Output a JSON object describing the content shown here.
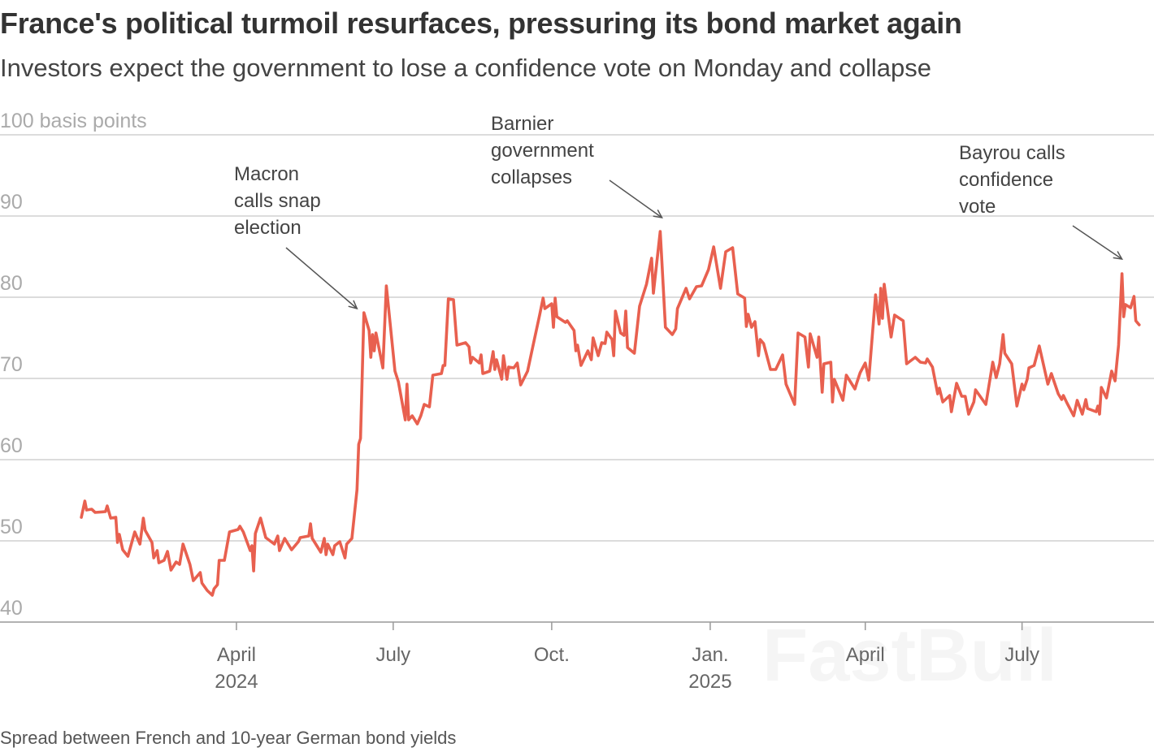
{
  "title": "France's political turmoil resurfaces, pressuring its bond market again",
  "subtitle": "Investors expect the government to lose a confidence vote on Monday and collapse",
  "footer": "Spread between French and 10-year German bond yields",
  "watermark": "FastBull",
  "chart_data": {
    "type": "line",
    "title": "France's political turmoil resurfaces, pressuring its bond market again",
    "ylabel": "",
    "y_unit_label": "100 basis points",
    "ylim": [
      40,
      100
    ],
    "yticks": [
      {
        "value": 100,
        "label": "100 basis points"
      },
      {
        "value": 90,
        "label": "90"
      },
      {
        "value": 80,
        "label": "80"
      },
      {
        "value": 70,
        "label": "70"
      },
      {
        "value": 60,
        "label": "60"
      },
      {
        "value": 50,
        "label": "50"
      },
      {
        "value": 40,
        "label": "40"
      }
    ],
    "xlim": [
      "2024-01-01",
      "2025-09-12"
    ],
    "xticks": [
      {
        "date": "2024-04-01",
        "label": "April",
        "year": "2024"
      },
      {
        "date": "2024-07-01",
        "label": "July",
        "year": ""
      },
      {
        "date": "2024-10-01",
        "label": "Oct.",
        "year": ""
      },
      {
        "date": "2025-01-01",
        "label": "Jan.",
        "year": "2025"
      },
      {
        "date": "2025-04-01",
        "label": "April",
        "year": ""
      },
      {
        "date": "2025-07-01",
        "label": "July",
        "year": ""
      }
    ],
    "grid": true,
    "line_color": "#e8604f",
    "annotations": [
      {
        "date": "2024-06-10",
        "value": 78.6,
        "lines": [
          "Macron",
          "calls snap",
          "election"
        ]
      },
      {
        "date": "2024-12-04",
        "value": 89.8,
        "lines": [
          "Barnier",
          "government",
          "collapses"
        ]
      },
      {
        "date": "2025-08-28",
        "value": 84.7,
        "lines": [
          "Bayrou calls",
          "confidence",
          "vote"
        ]
      }
    ],
    "series": [
      {
        "points": [
          [
            "2024-01-02",
            52.9
          ],
          [
            "2024-01-04",
            54.9
          ],
          [
            "2024-01-05",
            53.8
          ],
          [
            "2024-01-08",
            53.9
          ],
          [
            "2024-01-10",
            53.5
          ],
          [
            "2024-01-16",
            53.6
          ],
          [
            "2024-01-17",
            54.3
          ],
          [
            "2024-01-19",
            52.8
          ],
          [
            "2024-01-22",
            52.9
          ],
          [
            "2024-01-23",
            49.8
          ],
          [
            "2024-01-24",
            50.8
          ],
          [
            "2024-01-26",
            48.9
          ],
          [
            "2024-01-29",
            48.1
          ],
          [
            "2024-02-02",
            51.1
          ],
          [
            "2024-02-05",
            49.6
          ],
          [
            "2024-02-07",
            52.8
          ],
          [
            "2024-02-08",
            51.3
          ],
          [
            "2024-02-12",
            49.8
          ],
          [
            "2024-02-13",
            47.9
          ],
          [
            "2024-02-15",
            48.8
          ],
          [
            "2024-02-16",
            47.3
          ],
          [
            "2024-02-19",
            47.6
          ],
          [
            "2024-02-21",
            48.7
          ],
          [
            "2024-02-23",
            46.4
          ],
          [
            "2024-02-26",
            47.4
          ],
          [
            "2024-02-28",
            47.1
          ],
          [
            "2024-03-01",
            49.6
          ],
          [
            "2024-03-05",
            47.1
          ],
          [
            "2024-03-07",
            45.1
          ],
          [
            "2024-03-11",
            46.1
          ],
          [
            "2024-03-12",
            44.8
          ],
          [
            "2024-03-15",
            43.9
          ],
          [
            "2024-03-18",
            43.3
          ],
          [
            "2024-03-19",
            44.1
          ],
          [
            "2024-03-21",
            44.6
          ],
          [
            "2024-03-22",
            47.6
          ],
          [
            "2024-03-25",
            47.6
          ],
          [
            "2024-03-28",
            51.1
          ],
          [
            "2024-04-02",
            51.4
          ],
          [
            "2024-04-03",
            51.8
          ],
          [
            "2024-04-05",
            51.1
          ],
          [
            "2024-04-09",
            48.8
          ],
          [
            "2024-04-10",
            49.4
          ],
          [
            "2024-04-11",
            46.3
          ],
          [
            "2024-04-12",
            50.9
          ],
          [
            "2024-04-15",
            52.8
          ],
          [
            "2024-04-18",
            50.4
          ],
          [
            "2024-04-23",
            49.6
          ],
          [
            "2024-04-25",
            50.6
          ],
          [
            "2024-04-26",
            48.8
          ],
          [
            "2024-04-29",
            50.3
          ],
          [
            "2024-05-03",
            48.9
          ],
          [
            "2024-05-07",
            49.9
          ],
          [
            "2024-05-08",
            50.4
          ],
          [
            "2024-05-13",
            50.6
          ],
          [
            "2024-05-14",
            52.1
          ],
          [
            "2024-05-15",
            50.3
          ],
          [
            "2024-05-20",
            48.6
          ],
          [
            "2024-05-22",
            50.3
          ],
          [
            "2024-05-23",
            48.3
          ],
          [
            "2024-05-24",
            49.6
          ],
          [
            "2024-05-27",
            48.3
          ],
          [
            "2024-05-28",
            49.4
          ],
          [
            "2024-05-31",
            49.9
          ],
          [
            "2024-06-03",
            47.9
          ],
          [
            "2024-06-04",
            49.6
          ],
          [
            "2024-06-07",
            50.3
          ],
          [
            "2024-06-10",
            56.3
          ],
          [
            "2024-06-11",
            61.9
          ],
          [
            "2024-06-12",
            62.6
          ],
          [
            "2024-06-14",
            78.1
          ],
          [
            "2024-06-17",
            75.9
          ],
          [
            "2024-06-18",
            72.6
          ],
          [
            "2024-06-19",
            75.4
          ],
          [
            "2024-06-20",
            73.4
          ],
          [
            "2024-06-21",
            75.6
          ],
          [
            "2024-06-25",
            71.3
          ],
          [
            "2024-06-27",
            81.4
          ],
          [
            "2024-07-02",
            70.9
          ],
          [
            "2024-07-04",
            69.6
          ],
          [
            "2024-07-08",
            64.9
          ],
          [
            "2024-07-09",
            69.3
          ],
          [
            "2024-07-10",
            64.9
          ],
          [
            "2024-07-12",
            65.4
          ],
          [
            "2024-07-15",
            64.4
          ],
          [
            "2024-07-17",
            65.4
          ],
          [
            "2024-07-19",
            66.8
          ],
          [
            "2024-07-22",
            66.5
          ],
          [
            "2024-07-24",
            70.4
          ],
          [
            "2024-07-29",
            70.6
          ],
          [
            "2024-07-30",
            71.6
          ],
          [
            "2024-07-31",
            71.6
          ],
          [
            "2024-08-02",
            79.8
          ],
          [
            "2024-08-05",
            79.7
          ],
          [
            "2024-08-07",
            74.1
          ],
          [
            "2024-08-12",
            74.4
          ],
          [
            "2024-08-14",
            73.9
          ],
          [
            "2024-08-15",
            71.9
          ],
          [
            "2024-08-16",
            72.6
          ],
          [
            "2024-08-20",
            71.9
          ],
          [
            "2024-08-21",
            72.9
          ],
          [
            "2024-08-22",
            70.6
          ],
          [
            "2024-08-26",
            70.9
          ],
          [
            "2024-08-28",
            73.3
          ],
          [
            "2024-08-29",
            71.1
          ],
          [
            "2024-08-30",
            72.3
          ],
          [
            "2024-09-02",
            69.9
          ],
          [
            "2024-09-03",
            72.8
          ],
          [
            "2024-09-05",
            69.9
          ],
          [
            "2024-09-06",
            71.4
          ],
          [
            "2024-09-09",
            71.3
          ],
          [
            "2024-09-11",
            71.9
          ],
          [
            "2024-09-13",
            69.2
          ],
          [
            "2024-09-17",
            70.9
          ],
          [
            "2024-09-20",
            73.9
          ],
          [
            "2024-09-24",
            77.8
          ],
          [
            "2024-09-26",
            79.9
          ],
          [
            "2024-09-27",
            78.6
          ],
          [
            "2024-10-01",
            79.2
          ],
          [
            "2024-10-02",
            76.3
          ],
          [
            "2024-10-03",
            79.9
          ],
          [
            "2024-10-04",
            77.6
          ],
          [
            "2024-10-09",
            76.9
          ],
          [
            "2024-10-10",
            77.1
          ],
          [
            "2024-10-14",
            75.9
          ],
          [
            "2024-10-15",
            73.4
          ],
          [
            "2024-10-16",
            74.1
          ],
          [
            "2024-10-18",
            71.6
          ],
          [
            "2024-10-22",
            73.4
          ],
          [
            "2024-10-24",
            72.3
          ],
          [
            "2024-10-25",
            75.0
          ],
          [
            "2024-10-28",
            72.8
          ],
          [
            "2024-10-30",
            74.4
          ],
          [
            "2024-11-01",
            74.3
          ],
          [
            "2024-11-02",
            75.7
          ],
          [
            "2024-11-05",
            74.8
          ],
          [
            "2024-11-06",
            72.8
          ],
          [
            "2024-11-07",
            78.3
          ],
          [
            "2024-11-10",
            75.6
          ],
          [
            "2024-11-12",
            75.3
          ],
          [
            "2024-11-13",
            78.3
          ],
          [
            "2024-11-14",
            73.8
          ],
          [
            "2024-11-18",
            73.1
          ],
          [
            "2024-11-21",
            78.9
          ],
          [
            "2024-11-25",
            81.6
          ],
          [
            "2024-11-28",
            84.8
          ],
          [
            "2024-11-29",
            80.5
          ],
          [
            "2024-12-03",
            88.1
          ],
          [
            "2024-12-04",
            84.1
          ],
          [
            "2024-12-06",
            76.3
          ],
          [
            "2024-12-10",
            75.4
          ],
          [
            "2024-12-12",
            76.1
          ],
          [
            "2024-12-13",
            78.6
          ],
          [
            "2024-12-18",
            81.1
          ],
          [
            "2024-12-20",
            79.8
          ],
          [
            "2024-12-24",
            81.3
          ],
          [
            "2024-12-27",
            81.4
          ],
          [
            "2024-12-31",
            83.4
          ],
          [
            "2025-01-03",
            86.2
          ],
          [
            "2025-01-07",
            81.1
          ],
          [
            "2025-01-10",
            85.6
          ],
          [
            "2025-01-14",
            86.1
          ],
          [
            "2025-01-17",
            80.4
          ],
          [
            "2025-01-21",
            79.9
          ],
          [
            "2025-01-22",
            76.4
          ],
          [
            "2025-01-23",
            77.9
          ],
          [
            "2025-01-25",
            76.3
          ],
          [
            "2025-01-27",
            77.0
          ],
          [
            "2025-01-29",
            72.8
          ],
          [
            "2025-01-30",
            74.8
          ],
          [
            "2025-02-01",
            74.3
          ],
          [
            "2025-02-05",
            71.1
          ],
          [
            "2025-02-08",
            71.1
          ],
          [
            "2025-02-12",
            72.9
          ],
          [
            "2025-02-14",
            69.3
          ],
          [
            "2025-02-19",
            66.8
          ],
          [
            "2025-02-21",
            75.6
          ],
          [
            "2025-02-25",
            75.1
          ],
          [
            "2025-02-27",
            71.4
          ],
          [
            "2025-02-28",
            75.5
          ],
          [
            "2025-03-04",
            72.6
          ],
          [
            "2025-03-05",
            75.1
          ],
          [
            "2025-03-07",
            68.3
          ],
          [
            "2025-03-08",
            71.8
          ],
          [
            "2025-03-12",
            72.0
          ],
          [
            "2025-03-13",
            67.1
          ],
          [
            "2025-03-14",
            69.9
          ],
          [
            "2025-03-19",
            67.3
          ],
          [
            "2025-03-21",
            70.4
          ],
          [
            "2025-03-26",
            68.7
          ],
          [
            "2025-03-27",
            69.4
          ],
          [
            "2025-03-29",
            70.7
          ],
          [
            "2025-04-01",
            71.9
          ],
          [
            "2025-04-03",
            69.8
          ],
          [
            "2025-04-07",
            80.3
          ],
          [
            "2025-04-09",
            76.7
          ],
          [
            "2025-04-10",
            81.1
          ],
          [
            "2025-04-11",
            77.4
          ],
          [
            "2025-04-12",
            81.6
          ],
          [
            "2025-04-16",
            75.1
          ],
          [
            "2025-04-18",
            77.8
          ],
          [
            "2025-04-23",
            77.1
          ],
          [
            "2025-04-25",
            71.8
          ],
          [
            "2025-04-30",
            72.6
          ],
          [
            "2025-05-03",
            72.0
          ],
          [
            "2025-05-06",
            71.9
          ],
          [
            "2025-05-07",
            72.4
          ],
          [
            "2025-05-10",
            71.4
          ],
          [
            "2025-05-13",
            68.1
          ],
          [
            "2025-05-14",
            68.8
          ],
          [
            "2025-05-16",
            67.1
          ],
          [
            "2025-05-20",
            67.9
          ],
          [
            "2025-05-21",
            65.9
          ],
          [
            "2025-05-24",
            69.4
          ],
          [
            "2025-05-27",
            67.8
          ],
          [
            "2025-05-29",
            67.8
          ],
          [
            "2025-05-31",
            65.6
          ],
          [
            "2025-06-03",
            67.1
          ],
          [
            "2025-06-04",
            68.6
          ],
          [
            "2025-06-10",
            66.8
          ],
          [
            "2025-06-14",
            72.0
          ],
          [
            "2025-06-16",
            70.1
          ],
          [
            "2025-06-18",
            71.8
          ],
          [
            "2025-06-20",
            75.4
          ],
          [
            "2025-06-21",
            73.1
          ],
          [
            "2025-06-25",
            71.8
          ],
          [
            "2025-06-28",
            66.6
          ],
          [
            "2025-07-01",
            69.3
          ],
          [
            "2025-07-02",
            68.6
          ],
          [
            "2025-07-04",
            69.9
          ],
          [
            "2025-07-05",
            71.3
          ],
          [
            "2025-07-08",
            71.6
          ],
          [
            "2025-07-11",
            74.0
          ],
          [
            "2025-07-16",
            69.3
          ],
          [
            "2025-07-18",
            70.6
          ],
          [
            "2025-07-22",
            68.1
          ],
          [
            "2025-07-24",
            67.4
          ],
          [
            "2025-07-25",
            67.9
          ],
          [
            "2025-07-27",
            67.0
          ],
          [
            "2025-07-31",
            65.4
          ],
          [
            "2025-08-02",
            67.3
          ],
          [
            "2025-08-05",
            65.6
          ],
          [
            "2025-08-07",
            67.4
          ],
          [
            "2025-08-08",
            66.3
          ],
          [
            "2025-08-13",
            65.9
          ],
          [
            "2025-08-14",
            66.6
          ],
          [
            "2025-08-15",
            65.6
          ],
          [
            "2025-08-16",
            68.9
          ],
          [
            "2025-08-19",
            67.6
          ],
          [
            "2025-08-22",
            70.9
          ],
          [
            "2025-08-24",
            69.7
          ],
          [
            "2025-08-26",
            74.1
          ],
          [
            "2025-08-28",
            82.9
          ],
          [
            "2025-08-29",
            77.6
          ],
          [
            "2025-08-30",
            79.1
          ],
          [
            "2025-09-02",
            78.7
          ],
          [
            "2025-09-04",
            80.1
          ],
          [
            "2025-09-05",
            77.1
          ],
          [
            "2025-09-07",
            76.6
          ]
        ]
      }
    ]
  }
}
